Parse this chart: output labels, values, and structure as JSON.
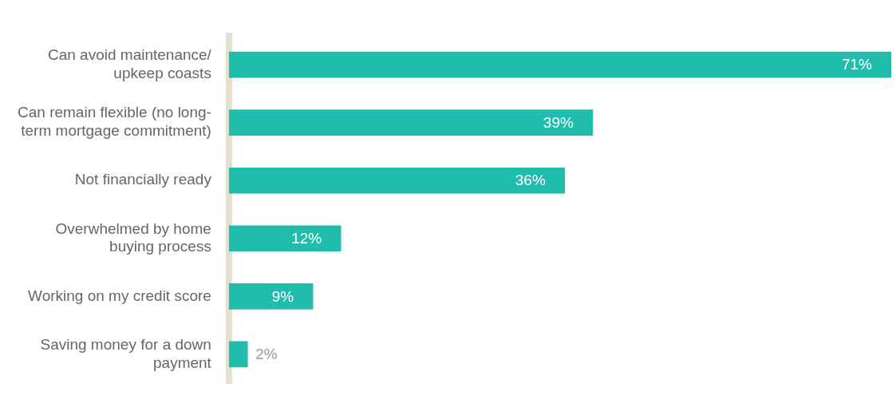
{
  "chart_data": {
    "type": "bar",
    "orientation": "horizontal",
    "categories": [
      "Can avoid maintenance/ upkeep coasts",
      "Can remain flexible (no long-term mortgage commitment)",
      "Not financially ready",
      "Overwhelmed by home buying process",
      "Working on my credit score",
      "Saving money for a down payment"
    ],
    "values": [
      71,
      39,
      36,
      12,
      9,
      2
    ],
    "value_labels": [
      "71%",
      "39%",
      "36%",
      "12%",
      "9%",
      "2%"
    ],
    "color": "#20bdac",
    "legend": false
  }
}
